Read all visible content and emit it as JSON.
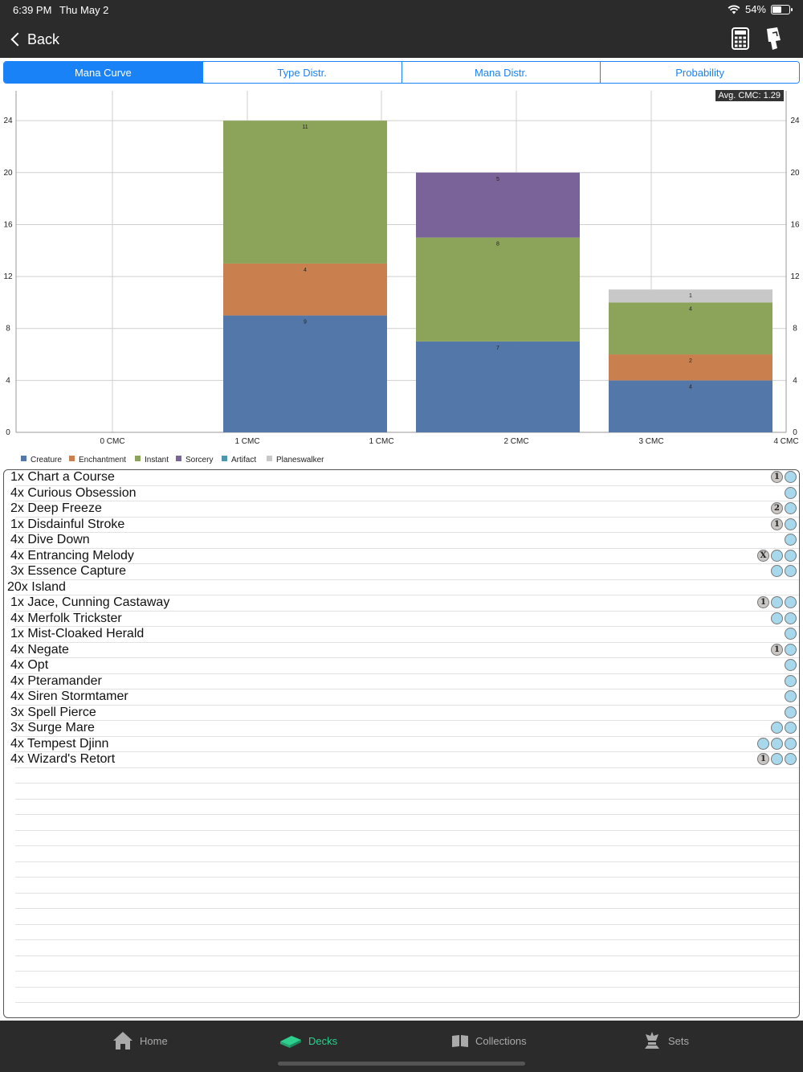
{
  "status": {
    "time": "6:39 PM",
    "date": "Thu May 2",
    "battery": "54%",
    "battery_level": 0.54
  },
  "nav": {
    "back_label": "Back"
  },
  "tabs": [
    {
      "label": "Mana Curve",
      "active": true
    },
    {
      "label": "Type Distr.",
      "active": false
    },
    {
      "label": "Mana Distr.",
      "active": false
    },
    {
      "label": "Probability",
      "active": false
    }
  ],
  "chart_data": {
    "type": "bar",
    "stacked": true,
    "x_tick_labels": [
      "0 CMC",
      "1 CMC",
      "1 CMC",
      "2 CMC",
      "3 CMC",
      "4 CMC"
    ],
    "categories": [
      "1 CMC",
      "2 CMC",
      "3 CMC"
    ],
    "series": [
      {
        "name": "Creature",
        "color": "#5377a8",
        "values": [
          9,
          7,
          4
        ]
      },
      {
        "name": "Enchantment",
        "color": "#c9804e",
        "values": [
          4,
          0,
          2
        ]
      },
      {
        "name": "Instant",
        "color": "#8ca35a",
        "values": [
          11,
          8,
          4
        ]
      },
      {
        "name": "Sorcery",
        "color": "#7a6398",
        "values": [
          0,
          5,
          0
        ]
      },
      {
        "name": "Artifact",
        "color": "#4d97ad",
        "values": [
          0,
          0,
          0
        ]
      },
      {
        "name": "Planeswalker",
        "color": "#c8c8c8",
        "values": [
          0,
          0,
          1
        ]
      }
    ],
    "yticks": [
      0,
      4,
      8,
      12,
      16,
      20,
      24
    ],
    "ylim": [
      0,
      26.3
    ],
    "grid": true,
    "legend": "bottom-left",
    "annotation": "Avg. CMC: 1.29"
  },
  "cards": [
    {
      "name": "1x Chart a Course",
      "cost": [
        "1",
        "U"
      ]
    },
    {
      "name": "4x Curious Obsession",
      "cost": [
        "U"
      ]
    },
    {
      "name": "2x Deep Freeze",
      "cost": [
        "2",
        "U"
      ]
    },
    {
      "name": "1x Disdainful Stroke",
      "cost": [
        "1",
        "U"
      ]
    },
    {
      "name": "4x Dive Down",
      "cost": [
        "U"
      ]
    },
    {
      "name": "4x Entrancing Melody",
      "cost": [
        "X",
        "U",
        "U"
      ]
    },
    {
      "name": "3x Essence Capture",
      "cost": [
        "U",
        "U"
      ]
    },
    {
      "name": "20x Island",
      "cost": []
    },
    {
      "name": "1x Jace, Cunning Castaway",
      "cost": [
        "1",
        "U",
        "U"
      ]
    },
    {
      "name": "4x Merfolk Trickster",
      "cost": [
        "U",
        "U"
      ]
    },
    {
      "name": "1x Mist-Cloaked Herald",
      "cost": [
        "U"
      ]
    },
    {
      "name": "4x Negate",
      "cost": [
        "1",
        "U"
      ]
    },
    {
      "name": "4x Opt",
      "cost": [
        "U"
      ]
    },
    {
      "name": "4x Pteramander",
      "cost": [
        "U"
      ]
    },
    {
      "name": "4x Siren Stormtamer",
      "cost": [
        "U"
      ]
    },
    {
      "name": "3x Spell Pierce",
      "cost": [
        "U"
      ]
    },
    {
      "name": "3x Surge Mare",
      "cost": [
        "U",
        "U"
      ]
    },
    {
      "name": "4x Tempest Djinn",
      "cost": [
        "U",
        "U",
        "U"
      ]
    },
    {
      "name": "4x Wizard's Retort",
      "cost": [
        "1",
        "U",
        "U"
      ]
    }
  ],
  "tabbar": [
    {
      "label": "Home",
      "icon": "home-icon",
      "active": false
    },
    {
      "label": "Decks",
      "icon": "deck-icon",
      "active": true
    },
    {
      "label": "Collections",
      "icon": "book-icon",
      "active": false
    },
    {
      "label": "Sets",
      "icon": "crown-icon",
      "active": false
    }
  ]
}
